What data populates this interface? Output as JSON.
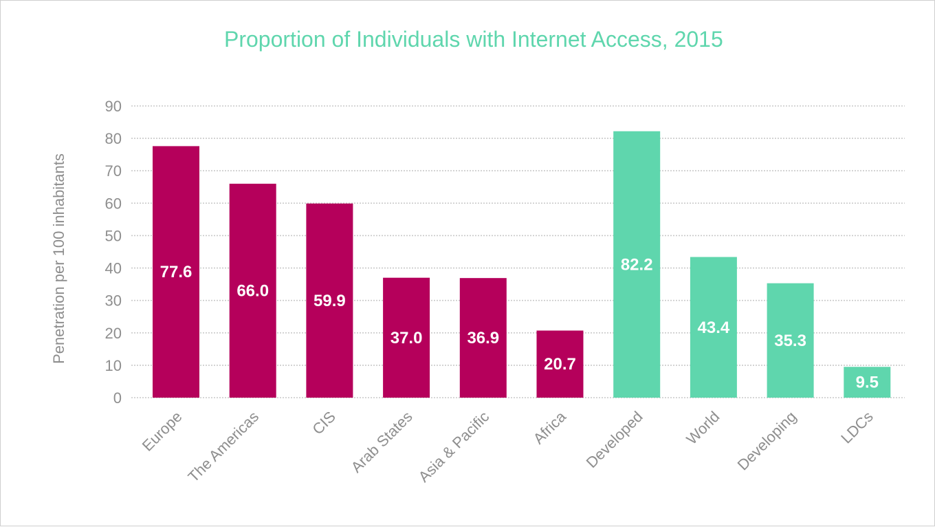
{
  "chart_data": {
    "type": "bar",
    "title": "Proportion of Individuals with Internet Access, 2015",
    "xlabel": "",
    "ylabel": "Penetration per 100 inhabitants",
    "ylim": [
      0,
      90
    ],
    "yticks": [
      0,
      10,
      20,
      30,
      40,
      50,
      60,
      70,
      80,
      90
    ],
    "grid": true,
    "categories": [
      "Europe",
      "The Americas",
      "CIS",
      "Arab States",
      "Asia & Pacific",
      "Africa",
      "Developed",
      "World",
      "Developing",
      "LDCs"
    ],
    "values": [
      77.6,
      66.0,
      59.9,
      37.0,
      36.9,
      20.7,
      82.2,
      43.4,
      35.3,
      9.5
    ],
    "value_labels": [
      "77.6",
      "66.0",
      "59.9",
      "37.0",
      "36.9",
      "20.7",
      "82.2",
      "43.4",
      "35.3",
      "9.5"
    ],
    "bar_colors": [
      "#b5005b",
      "#b5005b",
      "#b5005b",
      "#b5005b",
      "#b5005b",
      "#b5005b",
      "#5fd6ad",
      "#5fd6ad",
      "#5fd6ad",
      "#5fd6ad"
    ],
    "colors": {
      "region": "#b5005b",
      "group": "#5fd6ad",
      "title": "#5fd6ad",
      "axis_text": "#8e8e8e",
      "grid": "#c9c9c9"
    }
  }
}
